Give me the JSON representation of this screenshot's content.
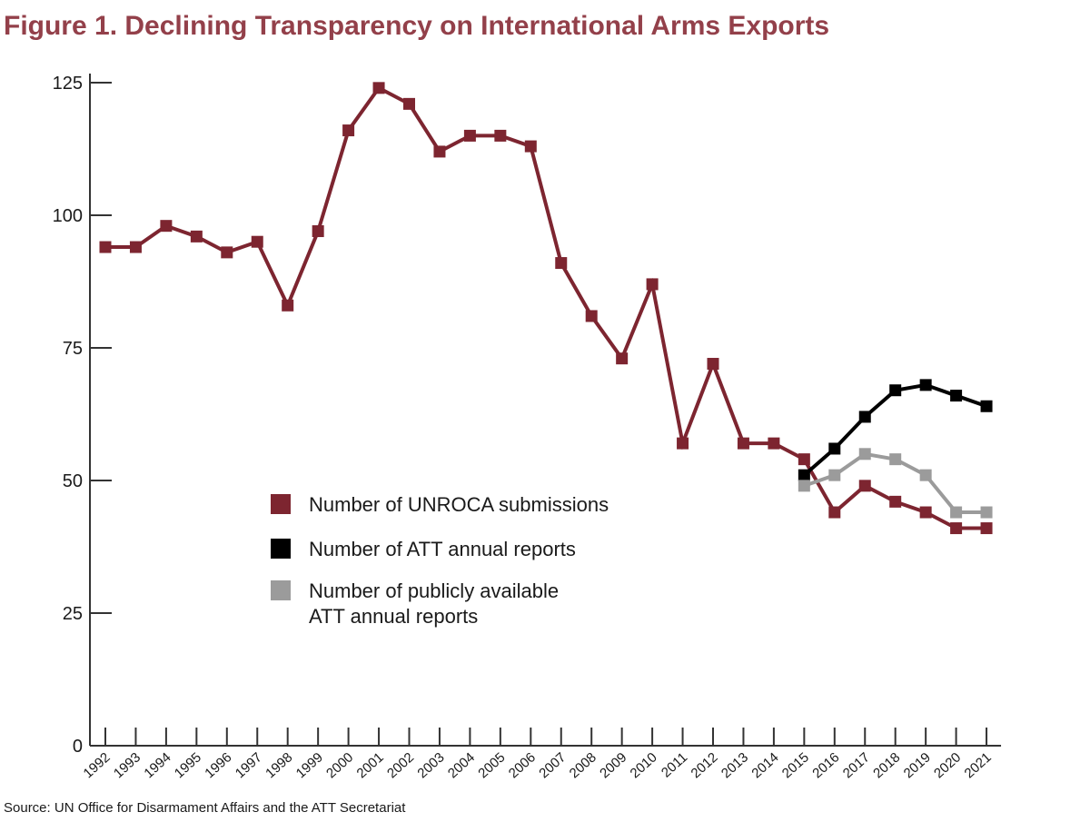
{
  "chart_data": {
    "type": "line",
    "title": "Figure 1. Declining Transparency on International Arms Exports",
    "xlabel": "",
    "ylabel": "",
    "x": [
      "1992",
      "1993",
      "1994",
      "1995",
      "1996",
      "1997",
      "1998",
      "1999",
      "2000",
      "2001",
      "2002",
      "2003",
      "2004",
      "2005",
      "2006",
      "2007",
      "2008",
      "2009",
      "2010",
      "2011",
      "2012",
      "2013",
      "2014",
      "2015",
      "2016",
      "2017",
      "2018",
      "2019",
      "2020",
      "2021"
    ],
    "ylim": [
      0,
      125
    ],
    "yticks": [
      0,
      25,
      50,
      75,
      100,
      125
    ],
    "grid": false,
    "legend_position": "center",
    "series": [
      {
        "name": "Number of UNROCA submissions",
        "color": "#7d2530",
        "values": [
          94,
          94,
          98,
          96,
          93,
          95,
          83,
          97,
          116,
          124,
          121,
          112,
          115,
          115,
          113,
          91,
          81,
          73,
          87,
          57,
          72,
          57,
          57,
          54,
          44,
          49,
          46,
          44,
          41,
          41
        ]
      },
      {
        "name": "Number of ATT annual reports",
        "color": "#000000",
        "values": [
          null,
          null,
          null,
          null,
          null,
          null,
          null,
          null,
          null,
          null,
          null,
          null,
          null,
          null,
          null,
          null,
          null,
          null,
          null,
          null,
          null,
          null,
          null,
          51,
          56,
          62,
          67,
          68,
          66,
          64
        ]
      },
      {
        "name": "Number of publicly available ATT annual reports",
        "color": "#9b9b9b",
        "values": [
          null,
          null,
          null,
          null,
          null,
          null,
          null,
          null,
          null,
          null,
          null,
          null,
          null,
          null,
          null,
          null,
          null,
          null,
          null,
          null,
          null,
          null,
          null,
          49,
          51,
          55,
          54,
          51,
          44,
          44
        ]
      }
    ],
    "legend": [
      {
        "lines": [
          "Number of UNROCA submissions"
        ],
        "color": "#7d2530"
      },
      {
        "lines": [
          "Number of ATT annual reports"
        ],
        "color": "#000000"
      },
      {
        "lines": [
          "Number of publicly available",
          "ATT annual reports"
        ],
        "color": "#9b9b9b"
      }
    ],
    "source": "Source: UN Office for Disarmament Affairs and the ATT Secretariat",
    "title_color": "#93404a"
  }
}
